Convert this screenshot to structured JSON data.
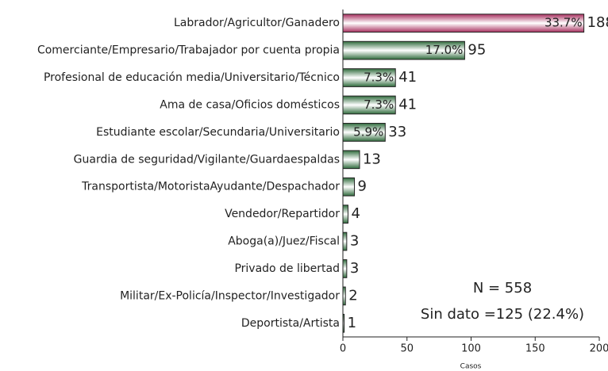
{
  "chart_data": {
    "type": "bar",
    "orientation": "horizontal",
    "categories": [
      "Labrador/Agricultor/Ganadero",
      "Comerciante/Empresario/Trabajador por cuenta propia",
      "Profesional de educación media/Universitario/Técnico",
      "Ama de casa/Oficios domésticos",
      "Estudiante escolar/Secundaria/Universitario",
      "Guardia de seguridad/Vigilante/Guardaespaldas",
      "Transportista/MotoristaAyudante/Despachador",
      "Vendedor/Repartidor",
      "Aboga(a)/Juez/Fiscal",
      "Privado de libertad",
      "Militar/Ex-Policía/Inspector/Investigador",
      "Deportista/Artista"
    ],
    "values": [
      188,
      95,
      41,
      41,
      33,
      13,
      9,
      4,
      3,
      3,
      2,
      1
    ],
    "shares": [
      {
        "value": 33.7,
        "label": "33.7%"
      },
      {
        "value": 17.0,
        "label": "17.0%"
      },
      {
        "value": 7.3,
        "label": "7.3%"
      },
      {
        "value": 7.3,
        "label": "7.3%"
      },
      {
        "value": 5.9,
        "label": "5.9%"
      },
      null,
      null,
      null,
      null,
      null,
      null,
      null
    ],
    "colors": [
      "#a8305f",
      "#2f6b3c",
      "#2f6b3c",
      "#2f6b3c",
      "#2f6b3c",
      "#2f6b3c",
      "#2f6b3c",
      "#2f6b3c",
      "#2f6b3c",
      "#2f6b3c",
      "#2f6b3c",
      "#2f6b3c"
    ],
    "xlabel": "Casos",
    "xlim": [
      0,
      200
    ],
    "xticks": [
      0,
      50,
      100,
      150,
      200
    ],
    "annotations": [
      "N = 558",
      "Sin dato =125 (22.4%)"
    ]
  }
}
